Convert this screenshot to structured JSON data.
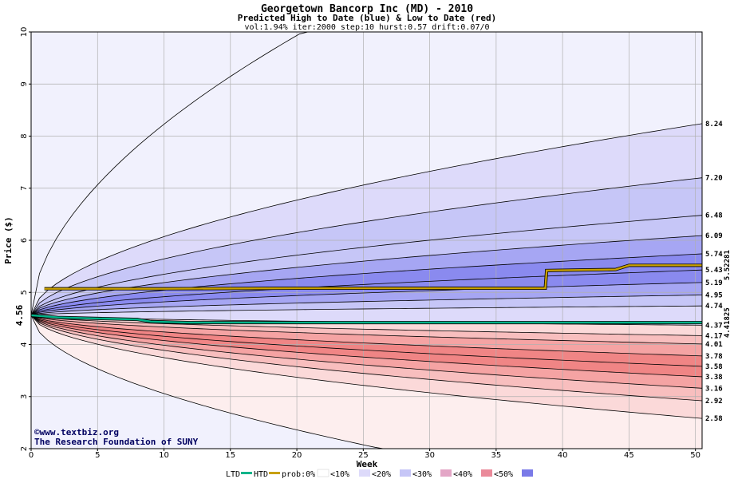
{
  "chart_data": {
    "type": "area",
    "title": "Georgetown Bancorp Inc (MD) - 2010",
    "subtitle": "Predicted High to Date (blue) &  Low to Date (red)",
    "params": "vol:1.94% iter:2000 step:10 hurst:0.57 drift:0.07/0",
    "xlabel": "Week",
    "ylabel": "Price ($)",
    "xlim": [
      0,
      50.5
    ],
    "ylim": [
      2,
      10
    ],
    "x_ticks": [
      "0",
      "5",
      "10",
      "15",
      "20",
      "25",
      "30",
      "35",
      "40",
      "45",
      "50"
    ],
    "y_ticks": [
      "2",
      "3",
      "4",
      "5",
      "6",
      "7",
      "8",
      "9",
      "10"
    ],
    "grid": true,
    "start_price": 4.56,
    "start_label": "4.56",
    "colors": {
      "band_10": "#f1f1fd",
      "band_20": "#dddafa",
      "band_30": "#c6c6f7",
      "band_40": "#a6a6f3",
      "band_50": "#8a8aef",
      "band_10r": "#fdeeee",
      "band_20r": "#fbd9d9",
      "band_30r": "#f8bebe",
      "band_40r": "#f5a3a3",
      "band_50r": "#f08585",
      "htd": "#c8a000",
      "ltd": "#00b48a"
    },
    "quantile_lines": [
      {
        "label": "8.24",
        "end": 8.24
      },
      {
        "label": "7.20",
        "end": 7.2
      },
      {
        "label": "6.48",
        "end": 6.48
      },
      {
        "label": "6.09",
        "end": 6.09
      },
      {
        "label": "5.74",
        "end": 5.74
      },
      {
        "label": "5.43",
        "end": 5.43
      },
      {
        "label": "5.19",
        "end": 5.19
      },
      {
        "label": "4.95",
        "end": 4.95
      },
      {
        "label": "4.74",
        "end": 4.74
      },
      {
        "label": "4.37",
        "end": 4.37
      },
      {
        "label": "4.17",
        "end": 4.17
      },
      {
        "label": "4.01",
        "end": 4.01
      },
      {
        "label": "3.78",
        "end": 3.78
      },
      {
        "label": "3.58",
        "end": 3.58
      },
      {
        "label": "3.38",
        "end": 3.38
      },
      {
        "label": "3.16",
        "end": 3.16
      },
      {
        "label": "2.92",
        "end": 2.92
      },
      {
        "label": "2.58",
        "end": 2.58
      }
    ],
    "outer_upper_end": 10.0,
    "outer_lower_end": 2.0,
    "series": [
      {
        "name": "HTD",
        "label": "5.52281",
        "end": 5.52281,
        "x": [
          1,
          10,
          20,
          30,
          38.7,
          38.8,
          44,
          45,
          50.5
        ],
        "y": [
          5.07,
          5.07,
          5.08,
          5.08,
          5.08,
          5.42,
          5.44,
          5.52,
          5.52
        ]
      },
      {
        "name": "LTD",
        "label": "4.41825",
        "end": 4.41825,
        "x": [
          0,
          2,
          8,
          9,
          12,
          20,
          30,
          40,
          50.5
        ],
        "y": [
          4.56,
          4.52,
          4.48,
          4.44,
          4.42,
          4.42,
          4.42,
          4.42,
          4.42
        ]
      }
    ],
    "legend": {
      "ltd": "LTD",
      "htd": "HTD",
      "prob": "prob:0%",
      "items": [
        "<10%",
        "<20%",
        "<30%",
        "<40%",
        "<50%"
      ]
    }
  },
  "credits": {
    "site": "©www.textbiz.org",
    "org": "The Research Foundation of SUNY"
  }
}
